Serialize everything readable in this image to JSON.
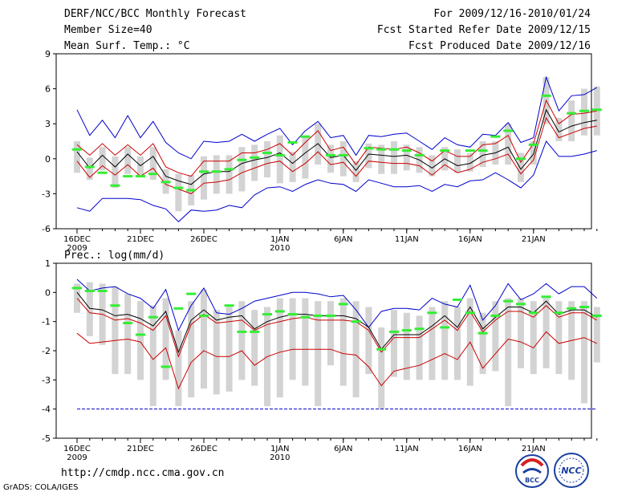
{
  "header": {
    "title": "DERF/NCC/BCC Monthly Forecast",
    "member_size": "Member Size=40",
    "variable": "Mean Surf. Temp.: °C",
    "period": "For 2009/12/16-2010/01/24",
    "fcst_started": "Fcst Started Refer Date 2009/12/15",
    "fcst_produced": "Fcst Produced Date 2009/12/16"
  },
  "footer": {
    "url": "http://cmdp.ncc.cma.gov.cn",
    "grads": "GrADS: COLA/IGES",
    "logo_bcc": "BCC",
    "logo_ncc": "NCC"
  },
  "colors": {
    "max_line": "#0000cc",
    "pct_line": "#cc0000",
    "mean_line": "#000000",
    "box": "#d3d3d3",
    "obs_mark": "#33ee33"
  },
  "chart_data": [
    {
      "type": "line",
      "name": "temperature",
      "ylabel": "Mean Surf. Temp.: °C",
      "ylim": [
        -6,
        9
      ],
      "yticks": [
        -6,
        -3,
        0,
        3,
        6,
        9
      ],
      "xticks": [
        {
          "day": 1,
          "label": "16DEC",
          "sub": "2009"
        },
        {
          "day": 6,
          "label": "21DEC",
          "sub": ""
        },
        {
          "day": 11,
          "label": "26DEC",
          "sub": ""
        },
        {
          "day": 17,
          "label": "1JAN",
          "sub": "2010"
        },
        {
          "day": 22,
          "label": "6JAN",
          "sub": ""
        },
        {
          "day": 27,
          "label": "11JAN",
          "sub": ""
        },
        {
          "day": 32,
          "label": "16JAN",
          "sub": ""
        },
        {
          "day": 37,
          "label": "21JAN",
          "sub": ""
        }
      ],
      "series": {
        "max": [
          4.2,
          2.0,
          3.3,
          1.8,
          3.7,
          1.8,
          3.2,
          1.4,
          0.5,
          0,
          1.5,
          1.4,
          1.5,
          2.1,
          1.5,
          2.1,
          2.6,
          1.2,
          2.4,
          3.2,
          1.8,
          2.0,
          0.3,
          2.0,
          1.9,
          2.1,
          2.2,
          1.5,
          0.8,
          1.8,
          1.2,
          1.0,
          2.1,
          2.0,
          3.1,
          1.4,
          1.8,
          7.0,
          4.1,
          5.4,
          5.5,
          6.1
        ],
        "p_upper": [
          1.2,
          0.3,
          1.3,
          0.3,
          1.2,
          0.3,
          1.3,
          -0.7,
          -1.2,
          -1.5,
          -0.2,
          -0.2,
          -0.2,
          0.5,
          0.5,
          0.8,
          1.3,
          0.3,
          1.4,
          2.4,
          0.7,
          1.0,
          -0.5,
          1.0,
          0.9,
          0.8,
          1.0,
          0.5,
          -0.2,
          0.7,
          0.2,
          0.2,
          1.2,
          1.3,
          2.0,
          -0.3,
          1.3,
          5.0,
          3.0,
          3.8,
          3.9,
          4.1
        ],
        "mean": [
          0.6,
          -0.8,
          0.3,
          -0.7,
          0.4,
          -0.6,
          0.2,
          -1.5,
          -1.9,
          -2.2,
          -1.3,
          -1.1,
          -1.1,
          -0.4,
          -0.1,
          0.1,
          0.5,
          -0.4,
          0.5,
          1.3,
          0.1,
          0.3,
          -1.0,
          0.4,
          0.3,
          0.2,
          0.3,
          -0.1,
          -0.8,
          0.0,
          -0.6,
          -0.4,
          0.3,
          0.5,
          1.0,
          -0.9,
          0.4,
          4.2,
          2.3,
          2.8,
          3.1,
          3.3
        ],
        "p_lower": [
          -0.2,
          -1.6,
          -0.6,
          -1.4,
          -0.5,
          -1.5,
          -0.8,
          -2.2,
          -2.6,
          -3.0,
          -2.1,
          -2.0,
          -1.8,
          -1.2,
          -0.8,
          -0.4,
          -0.2,
          -1.1,
          -0.4,
          0.6,
          -0.5,
          -0.3,
          -1.5,
          -0.2,
          -0.3,
          -0.4,
          -0.4,
          -0.6,
          -1.4,
          -0.5,
          -1.2,
          -0.9,
          -0.3,
          0,
          0.4,
          -1.3,
          -0.1,
          3.5,
          1.8,
          2.2,
          2.6,
          2.8
        ],
        "min": [
          -4.2,
          -4.5,
          -3.4,
          -3.4,
          -3.4,
          -3.5,
          -4.0,
          -4.3,
          -5.4,
          -4.4,
          -4.5,
          -4.4,
          -4.0,
          -4.2,
          -3.1,
          -2.5,
          -2.4,
          -2.8,
          -2.2,
          -1.8,
          -2.1,
          -2.2,
          -2.8,
          -1.8,
          -2.1,
          -2.4,
          -2.4,
          -2.3,
          -2.8,
          -2.2,
          -2.4,
          -1.9,
          -1.8,
          -1.2,
          -1.8,
          -2.5,
          -1.4,
          1.5,
          0.2,
          0.2,
          0.4,
          0.7
        ],
        "box_top": [
          1.5,
          0.1,
          1.0,
          0.2,
          1.0,
          0.2,
          1.0,
          -0.9,
          -1.3,
          -1.4,
          0.2,
          0.3,
          0.3,
          1.0,
          1.2,
          1.5,
          2.0,
          0.6,
          2.0,
          3.0,
          1.2,
          1.5,
          -0.2,
          1.3,
          1.2,
          1.5,
          1.2,
          1.0,
          0.3,
          1.0,
          0.8,
          0.5,
          1.5,
          1.5,
          3.0,
          0.5,
          1.5,
          7.0,
          3.5,
          5.0,
          6.0,
          6.2
        ],
        "box_bot": [
          -1.2,
          -1.8,
          -1.0,
          -2.5,
          -1.3,
          -1.5,
          -1.8,
          -3.0,
          -4.5,
          -4.0,
          -3.5,
          -3.0,
          -3.0,
          -2.8,
          -1.9,
          -1.6,
          -2.1,
          -2.0,
          -1.7,
          -0.5,
          -1.2,
          -1.5,
          -2.0,
          -0.8,
          -1.3,
          -1.3,
          -1.0,
          -1.2,
          -1.5,
          -1.0,
          -1.2,
          -1.1,
          -0.7,
          -0.5,
          -0.5,
          -2.0,
          -0.5,
          3.0,
          1.5,
          1.5,
          2.0,
          2.0
        ],
        "obs": [
          0.8,
          -0.7,
          -1.2,
          -2.3,
          -1.5,
          -1.5,
          -1.3,
          -2.0,
          -2.5,
          -2.7,
          -1.1,
          -1.1,
          -0.9,
          -0.1,
          0.1,
          0.5,
          0.3,
          1.4,
          1.9,
          null,
          0.3,
          0.3,
          null,
          0.9,
          0.8,
          0.8,
          0.7,
          0.3,
          null,
          0.7,
          null,
          0.7,
          0.7,
          1.9,
          2.4,
          0.0,
          1.2,
          5.4,
          null,
          3.9,
          4.1,
          4.2
        ]
      }
    },
    {
      "type": "line",
      "name": "precipitation",
      "ylabel": "Prec.: log(mm/d)",
      "ylim": [
        -5,
        1
      ],
      "yticks": [
        -5,
        -4,
        -3,
        -2,
        -1,
        0,
        1
      ],
      "xticks": [
        {
          "day": 1,
          "label": "16DEC",
          "sub": "2009"
        },
        {
          "day": 6,
          "label": "21DEC",
          "sub": ""
        },
        {
          "day": 11,
          "label": "26DEC",
          "sub": ""
        },
        {
          "day": 17,
          "label": "1JAN",
          "sub": "2010"
        },
        {
          "day": 22,
          "label": "6JAN",
          "sub": ""
        },
        {
          "day": 27,
          "label": "11JAN",
          "sub": ""
        },
        {
          "day": 32,
          "label": "16JAN",
          "sub": ""
        },
        {
          "day": 37,
          "label": "21JAN",
          "sub": ""
        }
      ],
      "series": {
        "max": [
          0.45,
          0.05,
          0.15,
          0.2,
          -0.05,
          -0.2,
          -0.55,
          0.1,
          -1.3,
          -0.45,
          0.15,
          -0.7,
          -0.75,
          -0.55,
          -0.3,
          -0.2,
          -0.1,
          0.0,
          0.0,
          -0.05,
          -0.15,
          -0.1,
          -0.6,
          -1.2,
          -0.65,
          -0.55,
          -0.55,
          -0.6,
          -0.2,
          -0.4,
          -0.5,
          0.25,
          -0.95,
          -0.45,
          0.3,
          -0.25,
          -0.05,
          0.3,
          -0.05,
          0.2,
          0.2,
          -0.2
        ],
        "mean": [
          0.0,
          -0.55,
          -0.6,
          -0.8,
          -0.75,
          -0.9,
          -1.15,
          -0.65,
          -2.05,
          -0.95,
          -0.6,
          -0.95,
          -0.85,
          -0.8,
          -1.25,
          -1.0,
          -0.85,
          -0.75,
          -0.75,
          -0.8,
          -0.8,
          -0.8,
          -0.9,
          -1.2,
          -1.95,
          -1.45,
          -1.45,
          -1.45,
          -1.15,
          -0.8,
          -1.2,
          -0.5,
          -1.25,
          -0.85,
          -0.5,
          -0.5,
          -0.7,
          -0.3,
          -0.75,
          -0.6,
          -0.6,
          -0.85
        ],
        "p_upper": [
          -0.2,
          -0.7,
          -0.75,
          -0.95,
          -0.9,
          -1.05,
          -1.3,
          -0.8,
          -2.2,
          -1.1,
          -0.75,
          -1.05,
          -1.0,
          -0.95,
          -1.3,
          -1.1,
          -1.0,
          -0.9,
          -0.85,
          -0.95,
          -0.95,
          -0.95,
          -1.0,
          -1.3,
          -2.05,
          -1.55,
          -1.55,
          -1.55,
          -1.25,
          -0.95,
          -1.3,
          -0.65,
          -1.35,
          -0.95,
          -0.65,
          -0.65,
          -0.85,
          -0.45,
          -0.85,
          -0.7,
          -0.7,
          -0.95
        ],
        "p_lower": [
          -1.4,
          -1.75,
          -1.7,
          -1.65,
          -1.6,
          -1.7,
          -2.3,
          -1.9,
          -3.3,
          -2.4,
          -2.0,
          -2.2,
          -2.2,
          -2.0,
          -2.5,
          -2.2,
          -2.05,
          -1.95,
          -1.95,
          -1.95,
          -1.95,
          -2.1,
          -2.15,
          -2.55,
          -3.2,
          -2.7,
          -2.6,
          -2.5,
          -2.3,
          -2.1,
          -2.3,
          -1.7,
          -2.6,
          -2.1,
          -1.6,
          -1.7,
          -1.9,
          -1.35,
          -1.75,
          -1.65,
          -1.55,
          -1.75
        ],
        "floor": -4.0,
        "box_top": [
          0.3,
          0.35,
          0.3,
          0.2,
          -0.05,
          -0.3,
          -0.45,
          -0.2,
          -1.3,
          -0.3,
          0.1,
          -0.6,
          -0.5,
          -0.3,
          -0.6,
          -0.5,
          -0.2,
          -0.2,
          -0.2,
          -0.3,
          -0.3,
          -0.2,
          -0.3,
          -0.5,
          -1.2,
          -0.6,
          -0.7,
          -0.8,
          -0.5,
          -0.3,
          -0.5,
          -0.2,
          -0.7,
          -0.3,
          -0.2,
          -0.2,
          -0.3,
          -0.2,
          -0.3,
          -0.3,
          -0.3,
          -0.5
        ],
        "box_bot": [
          -0.7,
          -1.5,
          -1.8,
          -2.8,
          -2.8,
          -3.0,
          -3.9,
          -3.0,
          -3.9,
          -3.6,
          -3.3,
          -3.5,
          -3.4,
          -3.0,
          -3.2,
          -3.9,
          -3.6,
          -3.0,
          -3.2,
          -3.9,
          -2.5,
          -3.2,
          -3.6,
          -2.8,
          -4.0,
          -2.9,
          -3.0,
          -3.0,
          -3.0,
          -3.0,
          -3.0,
          -3.2,
          -2.8,
          -2.7,
          -3.9,
          -2.6,
          -2.8,
          -2.6,
          -2.8,
          -3.0,
          -3.8,
          -2.4
        ],
        "obs": [
          0.15,
          0.05,
          0.05,
          -0.45,
          -1.05,
          -1.45,
          -0.85,
          -2.55,
          -0.55,
          -0.05,
          -0.8,
          null,
          -0.45,
          -1.35,
          -1.35,
          -0.75,
          -0.65,
          -0.75,
          -0.85,
          -0.8,
          -0.8,
          -0.4,
          -1.0,
          null,
          -1.95,
          -1.35,
          -1.3,
          -1.25,
          -0.7,
          -1.2,
          -0.25,
          -0.7,
          -1.4,
          -0.8,
          -0.3,
          -0.4,
          -0.7,
          -0.15,
          -0.7,
          -0.55,
          -0.5,
          -0.8
        ]
      }
    }
  ]
}
